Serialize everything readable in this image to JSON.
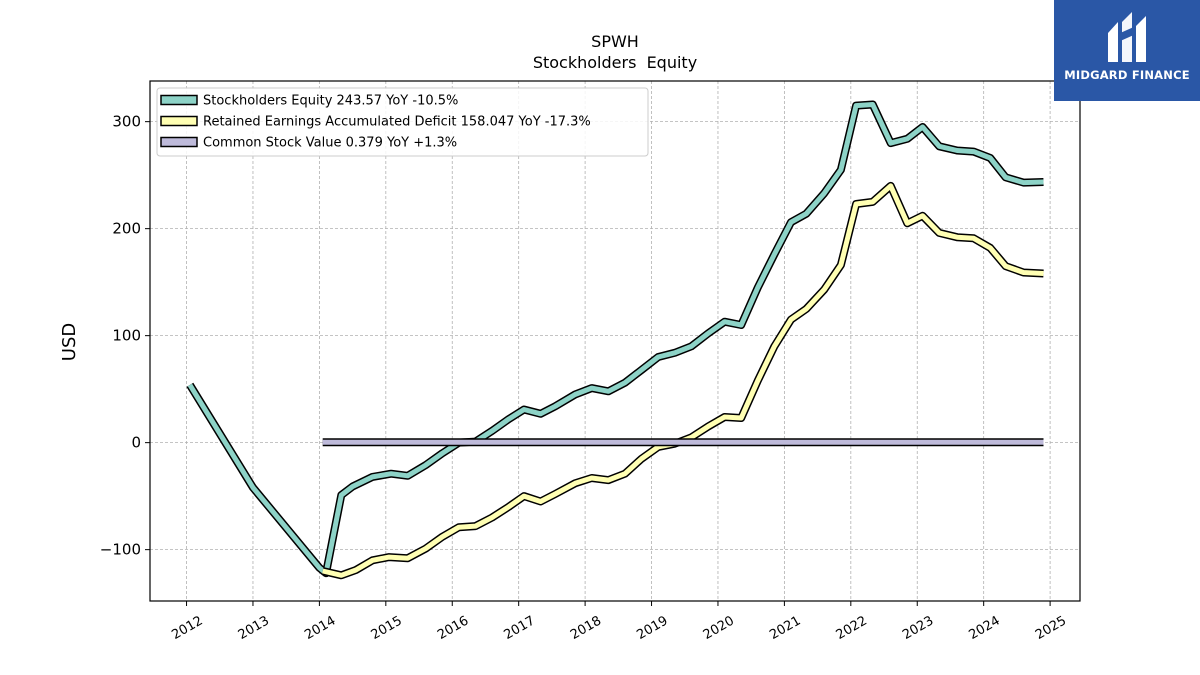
{
  "brand": {
    "name": "MIDGARD FINANCE",
    "bg_color": "#2a57a6",
    "icon": "midgard-logo-icon"
  },
  "chart_data": {
    "type": "line",
    "title": "SPWH",
    "subtitle": "Stockholders  Equity",
    "ylabel": "USD",
    "xlabel": "",
    "xlim": [
      2011.45,
      2025.45
    ],
    "ylim": [
      -148,
      338
    ],
    "yticks": [
      -100,
      0,
      100,
      200,
      300
    ],
    "ytick_labels": [
      "−100",
      "0",
      "100",
      "200",
      "300"
    ],
    "xticks": [
      2012,
      2013,
      2014,
      2015,
      2016,
      2017,
      2018,
      2019,
      2020,
      2021,
      2022,
      2023,
      2024,
      2025
    ],
    "xtick_labels": [
      "2012",
      "2013",
      "2014",
      "2015",
      "2016",
      "2017",
      "2018",
      "2019",
      "2020",
      "2021",
      "2022",
      "2023",
      "2024",
      "2025"
    ],
    "grid": true,
    "legend_position": "top-left",
    "series": [
      {
        "name": "Stockholders Equity",
        "legend_label": "Stockholders Equity  243.57 YoY -10.5%",
        "color": "#8dd3c7",
        "x": [
          2012.05,
          2013.0,
          2014.0,
          2014.1,
          2014.33,
          2014.5,
          2014.8,
          2015.08,
          2015.33,
          2015.6,
          2015.85,
          2016.1,
          2016.35,
          2016.6,
          2016.85,
          2017.08,
          2017.33,
          2017.55,
          2017.85,
          2018.1,
          2018.35,
          2018.6,
          2018.85,
          2019.1,
          2019.35,
          2019.6,
          2019.85,
          2020.1,
          2020.35,
          2020.6,
          2020.85,
          2021.1,
          2021.33,
          2021.6,
          2021.85,
          2022.08,
          2022.33,
          2022.6,
          2022.85,
          2023.08,
          2023.33,
          2023.6,
          2023.85,
          2024.1,
          2024.33,
          2024.6,
          2024.9
        ],
        "values": [
          54,
          -42,
          -117,
          -122,
          -49,
          -41,
          -32,
          -29,
          -31,
          -21,
          -10,
          0,
          1,
          11,
          22,
          31,
          27,
          34,
          45,
          51,
          48,
          56,
          68,
          80,
          84,
          90,
          102,
          113,
          110,
          145,
          176,
          206,
          214,
          233,
          255,
          315,
          316,
          280,
          284,
          295,
          277,
          273,
          272,
          266,
          248,
          243,
          243.57
        ]
      },
      {
        "name": "Retained Earnings Accumulated Deficit",
        "legend_label": "Retained Earnings Accumulated Deficit  158.047 YoY -17.3%",
        "color": "#ffffb3",
        "x": [
          2014.05,
          2014.33,
          2014.55,
          2014.8,
          2015.05,
          2015.33,
          2015.6,
          2015.85,
          2016.1,
          2016.35,
          2016.6,
          2016.85,
          2017.08,
          2017.33,
          2017.55,
          2017.85,
          2018.1,
          2018.35,
          2018.6,
          2018.85,
          2019.1,
          2019.35,
          2019.6,
          2019.85,
          2020.1,
          2020.35,
          2020.6,
          2020.85,
          2021.1,
          2021.33,
          2021.6,
          2021.85,
          2022.08,
          2022.33,
          2022.6,
          2022.85,
          2023.08,
          2023.33,
          2023.6,
          2023.85,
          2024.1,
          2024.33,
          2024.6,
          2024.9
        ],
        "values": [
          -120,
          -124,
          -119,
          -110,
          -107,
          -108,
          -99,
          -88,
          -79,
          -78,
          -70,
          -60,
          -50,
          -55,
          -48,
          -38,
          -33,
          -35,
          -29,
          -15,
          -4,
          -1,
          5,
          15,
          24,
          23,
          58,
          90,
          115,
          125,
          143,
          166,
          223,
          225,
          240,
          205,
          212,
          196,
          192,
          191,
          182,
          165,
          159,
          158.047
        ]
      },
      {
        "name": "Common Stock Value",
        "legend_label": "Common Stock Value  0.379 YoY +1.3%",
        "color": "#bebada",
        "x": [
          2014.05,
          2024.9
        ],
        "values": [
          0.374,
          0.379
        ]
      }
    ]
  }
}
